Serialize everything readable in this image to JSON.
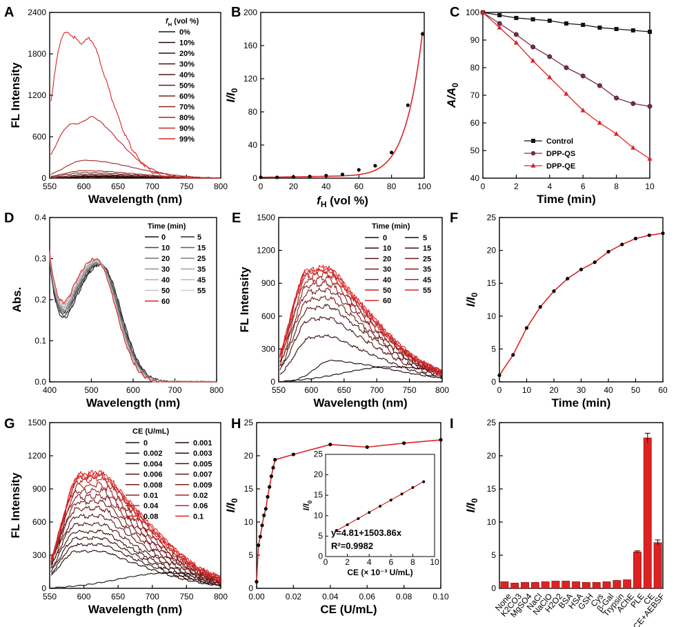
{
  "figure": {
    "panels": [
      {
        "id": "A",
        "label": "A",
        "type": "line",
        "xlabel": "Wavelength (nm)",
        "ylabel": "FL Intensity",
        "xlim": [
          550,
          800
        ],
        "ylim": [
          0,
          2400
        ],
        "xticks": [
          550,
          600,
          650,
          700,
          750,
          800
        ],
        "yticks": [
          0,
          600,
          1200,
          1800,
          2400
        ],
        "legend": {
          "title": "f_H (vol %)",
          "title_main": "f",
          "title_sub": "H",
          "title_rest": " (vol %)",
          "placement": "top-right",
          "columns": 1
        },
        "series": [
          {
            "name": "0%",
            "color": "#111111",
            "peak": 18,
            "center": 610,
            "width": 60
          },
          {
            "name": "10%",
            "color": "#1f0606",
            "peak": 20,
            "center": 610,
            "width": 60
          },
          {
            "name": "20%",
            "color": "#2e0a0a",
            "peak": 24,
            "center": 612,
            "width": 62
          },
          {
            "name": "30%",
            "color": "#3e0f0f",
            "peak": 30,
            "center": 612,
            "width": 62
          },
          {
            "name": "40%",
            "color": "#501515",
            "peak": 40,
            "center": 610,
            "width": 64
          },
          {
            "name": "50%",
            "color": "#621a1a",
            "peak": 55,
            "center": 605,
            "width": 64
          },
          {
            "name": "60%",
            "color": "#752020",
            "peak": 80,
            "center": 600,
            "width": 64
          },
          {
            "name": "70%",
            "color": "#8a2323",
            "peak": 110,
            "center": 600,
            "width": 64
          },
          {
            "name": "80%",
            "color": "#a52525",
            "peak": 260,
            "center": 600,
            "width": 62
          },
          {
            "name": "90%",
            "color": "#c42525",
            "peak": 780,
            "center": 582,
            "width": 52
          },
          {
            "name": "99%",
            "color": "#dd2222",
            "peak": 2110,
            "center": 572,
            "width": 40
          }
        ]
      },
      {
        "id": "B",
        "label": "B",
        "type": "scatter",
        "xlabel": "f_H (vol %)",
        "xlabel_main": "f",
        "xlabel_sub": "H",
        "xlabel_rest": " (vol %)",
        "ylabel": "I/I0",
        "ylabel_main": "I/I",
        "ylabel_sub": "0",
        "xlim": [
          0,
          100
        ],
        "ylim": [
          0,
          200
        ],
        "xticks": [
          0,
          20,
          40,
          60,
          80,
          100
        ],
        "yticks": [
          0,
          40,
          80,
          120,
          160,
          200
        ],
        "x": [
          0,
          10,
          20,
          30,
          40,
          50,
          60,
          70,
          80,
          90,
          99
        ],
        "y": [
          1,
          1,
          1.5,
          2,
          3,
          4.5,
          10,
          15,
          31,
          88,
          174
        ],
        "fit_color": "#dd2222"
      },
      {
        "id": "C",
        "label": "C",
        "type": "line",
        "xlabel": "Time (min)",
        "ylabel": "A/A0",
        "ylabel_main": "A/A",
        "ylabel_sub": "0",
        "xlim": [
          0,
          10
        ],
        "ylim": [
          40,
          100
        ],
        "xticks": [
          0,
          2,
          4,
          6,
          8,
          10
        ],
        "yticks": [
          40,
          50,
          60,
          70,
          80,
          90,
          100
        ],
        "legend": {
          "placement": "bottom-left"
        },
        "x": [
          0,
          1,
          2,
          3,
          4,
          5,
          6,
          7,
          8,
          9,
          10
        ],
        "series": [
          {
            "name": "Control",
            "color": "#111111",
            "marker": "square",
            "values": [
              100,
              99,
              98,
              97.5,
              97,
              96,
              95.5,
              94.5,
              94,
              93.5,
              93
            ]
          },
          {
            "name": "DPP-QS",
            "color": "#7a2a45",
            "marker": "circle",
            "values": [
              100,
              96,
              92,
              87.5,
              84,
              80,
              77,
              73.5,
              69,
              67,
              66
            ]
          },
          {
            "name": "DPP-QE",
            "color": "#dd2222",
            "marker": "triangle",
            "values": [
              100,
              94.5,
              89,
              82.5,
              76.5,
              70.5,
              64.5,
              60,
              56,
              51,
              47
            ]
          }
        ]
      },
      {
        "id": "D",
        "label": "D",
        "type": "line",
        "xlabel": "Wavelength (nm)",
        "ylabel": "Abs.",
        "xlim": [
          400,
          800
        ],
        "ylim": [
          0,
          0.4
        ],
        "xticks": [
          400,
          500,
          600,
          700,
          800
        ],
        "yticks": [
          0.0,
          0.1,
          0.2,
          0.3,
          0.4
        ],
        "legend": {
          "title": "Time (min)",
          "placement": "top-right",
          "columns": 2
        },
        "series": [
          {
            "name": "0",
            "color": "#111111",
            "peak_x": 523,
            "peak_y": 0.287
          },
          {
            "name": "5",
            "color": "#2a2a2a",
            "peak_x": 521,
            "peak_y": 0.288
          },
          {
            "name": "10",
            "color": "#444444",
            "peak_x": 519,
            "peak_y": 0.289
          },
          {
            "name": "15",
            "color": "#5a5a5a",
            "peak_x": 518,
            "peak_y": 0.29
          },
          {
            "name": "20",
            "color": "#6e6e6e",
            "peak_x": 517,
            "peak_y": 0.291
          },
          {
            "name": "25",
            "color": "#808080",
            "peak_x": 516,
            "peak_y": 0.292
          },
          {
            "name": "30",
            "color": "#909090",
            "peak_x": 515,
            "peak_y": 0.293
          },
          {
            "name": "35",
            "color": "#a0a0a0",
            "peak_x": 514,
            "peak_y": 0.294
          },
          {
            "name": "40",
            "color": "#aeaeae",
            "peak_x": 513,
            "peak_y": 0.295
          },
          {
            "name": "45",
            "color": "#b8b8b8",
            "peak_x": 512,
            "peak_y": 0.296
          },
          {
            "name": "50",
            "color": "#c2c2c2",
            "peak_x": 511,
            "peak_y": 0.297
          },
          {
            "name": "55",
            "color": "#cccccc",
            "peak_x": 511,
            "peak_y": 0.298
          },
          {
            "name": "60",
            "color": "#dd2222",
            "peak_x": 510,
            "peak_y": 0.3
          }
        ]
      },
      {
        "id": "E",
        "label": "E",
        "type": "line",
        "xlabel": "Wavelength (nm)",
        "ylabel": "FL Intensity",
        "xlim": [
          550,
          800
        ],
        "ylim": [
          0,
          1500
        ],
        "xticks": [
          550,
          600,
          650,
          700,
          750,
          800
        ],
        "yticks": [
          0,
          300,
          600,
          900,
          1200,
          1500
        ],
        "legend": {
          "title": "Time (min)",
          "placement": "top-right",
          "columns": 2
        },
        "series": [
          {
            "name": "0",
            "color": "#111111",
            "peak": 140,
            "center": 720
          },
          {
            "name": "5",
            "color": "#220707",
            "peak": 185,
            "center": 630
          },
          {
            "name": "10",
            "color": "#330b0b",
            "peak": 410,
            "center": 600
          },
          {
            "name": "15",
            "color": "#441010",
            "peak": 575,
            "center": 598
          },
          {
            "name": "20",
            "color": "#561414",
            "peak": 680,
            "center": 598
          },
          {
            "name": "25",
            "color": "#681818",
            "peak": 760,
            "center": 597
          },
          {
            "name": "30",
            "color": "#7a1b1b",
            "peak": 830,
            "center": 597
          },
          {
            "name": "35",
            "color": "#8d1e1e",
            "peak": 890,
            "center": 596
          },
          {
            "name": "40",
            "color": "#a02121",
            "peak": 940,
            "center": 596
          },
          {
            "name": "45",
            "color": "#b22323",
            "peak": 980,
            "center": 595
          },
          {
            "name": "50",
            "color": "#c42424",
            "peak": 1010,
            "center": 595
          },
          {
            "name": "55",
            "color": "#d42424",
            "peak": 1025,
            "center": 595
          },
          {
            "name": "60",
            "color": "#e02222",
            "peak": 1035,
            "center": 595
          }
        ]
      },
      {
        "id": "F",
        "label": "F",
        "type": "line",
        "xlabel": "Time (min)",
        "ylabel": "I/I0",
        "ylabel_main": "I/I",
        "ylabel_sub": "0",
        "xlim": [
          0,
          60
        ],
        "ylim": [
          0,
          25
        ],
        "xticks": [
          0,
          10,
          20,
          30,
          40,
          50,
          60
        ],
        "yticks": [
          0,
          5,
          10,
          15,
          20,
          25
        ],
        "x": [
          0,
          5,
          10,
          15,
          20,
          25,
          30,
          35,
          40,
          45,
          50,
          55,
          60
        ],
        "y": [
          1,
          4.1,
          8.2,
          11.4,
          13.8,
          15.7,
          17.1,
          18.2,
          19.8,
          20.9,
          21.8,
          22.3,
          22.6
        ],
        "fit_color": "#dd2222"
      },
      {
        "id": "G",
        "label": "G",
        "type": "line",
        "xlabel": "Wavelength (nm)",
        "ylabel": "FL Intensity",
        "xlim": [
          550,
          800
        ],
        "ylim": [
          0,
          1500
        ],
        "xticks": [
          550,
          600,
          650,
          700,
          750,
          800
        ],
        "yticks": [
          0,
          300,
          600,
          900,
          1200,
          1500
        ],
        "legend": {
          "title": "CE (U/mL)",
          "placement": "top-right",
          "columns": 2
        },
        "series": [
          {
            "name": "0",
            "color": "#111111",
            "peak": 140,
            "center": 720
          },
          {
            "name": "0.001",
            "color": "#1d0606",
            "peak": 340,
            "center": 590
          },
          {
            "name": "0.002",
            "color": "#280909",
            "peak": 400,
            "center": 590
          },
          {
            "name": "0.003",
            "color": "#330b0b",
            "peak": 460,
            "center": 590
          },
          {
            "name": "0.004",
            "color": "#3e0e0e",
            "peak": 520,
            "center": 590
          },
          {
            "name": "0.005",
            "color": "#4a1111",
            "peak": 590,
            "center": 590
          },
          {
            "name": "0.006",
            "color": "#561414",
            "peak": 660,
            "center": 591
          },
          {
            "name": "0.007",
            "color": "#621717",
            "peak": 730,
            "center": 591
          },
          {
            "name": "0.008",
            "color": "#6f1919",
            "peak": 790,
            "center": 592
          },
          {
            "name": "0.009",
            "color": "#7c1c1c",
            "peak": 840,
            "center": 592
          },
          {
            "name": "0.01",
            "color": "#8a1e1e",
            "peak": 890,
            "center": 593
          },
          {
            "name": "0.02",
            "color": "#a02121",
            "peak": 940,
            "center": 593
          },
          {
            "name": "0.04",
            "color": "#b52323",
            "peak": 990,
            "center": 594
          },
          {
            "name": "0.06",
            "color": "#c72424",
            "peak": 1015,
            "center": 594
          },
          {
            "name": "0.08",
            "color": "#d52424",
            "peak": 1030,
            "center": 595
          },
          {
            "name": "0.1",
            "color": "#e02222",
            "peak": 1040,
            "center": 595
          }
        ]
      },
      {
        "id": "H",
        "label": "H",
        "type": "scatter",
        "xlabel": "CE (U/mL)",
        "ylabel": "I/I0",
        "ylabel_main": "I/I",
        "ylabel_sub": "0",
        "xlim": [
          0,
          0.1
        ],
        "ylim": [
          0,
          25
        ],
        "xticks": [
          0.0,
          0.02,
          0.04,
          0.06,
          0.08,
          0.1
        ],
        "yticks": [
          0,
          5,
          10,
          15,
          20,
          25
        ],
        "x": [
          0,
          0.001,
          0.002,
          0.003,
          0.004,
          0.005,
          0.006,
          0.007,
          0.008,
          0.009,
          0.01,
          0.02,
          0.04,
          0.06,
          0.08,
          0.1
        ],
        "y": [
          1,
          6.5,
          7.8,
          9.5,
          11,
          12,
          13.8,
          15.3,
          16.9,
          18.2,
          19.4,
          20.2,
          21.7,
          21.3,
          21.9,
          22.4
        ],
        "fit_color": "#dd2222",
        "inset": {
          "xlabel": "CE (× 10⁻³ U/mL)",
          "ylabel": "I/I0",
          "ylabel_main": "I/I",
          "ylabel_sub": "0",
          "xlim": [
            0,
            10
          ],
          "ylim": [
            0,
            25
          ],
          "xticks": [
            0,
            2,
            4,
            6,
            8,
            10
          ],
          "yticks": [
            0,
            5,
            10,
            15,
            20,
            25
          ],
          "x": [
            1,
            2,
            3,
            4,
            5,
            6,
            7,
            8,
            9
          ],
          "y": [
            6.4,
            7.8,
            9.3,
            10.8,
            12.3,
            13.8,
            15.3,
            16.9,
            18.3
          ],
          "equation": "y=4.81+1503.86x",
          "r2": "R²=0.9982",
          "fit_color": "#dd2222"
        }
      },
      {
        "id": "I",
        "label": "I",
        "type": "bar",
        "ylabel": "I/I0",
        "ylabel_main": "I/I",
        "ylabel_sub": "0",
        "ylim": [
          0,
          25
        ],
        "yticks": [
          0,
          5,
          10,
          15,
          20,
          25
        ],
        "categories": [
          "None",
          "K2CO3",
          "MgSO4",
          "NaCl",
          "NaClO",
          "H2O2",
          "BSA",
          "HSA",
          "GSH",
          "Cys",
          "β-Gal",
          "Trypsin",
          "AChE",
          "PLE",
          "CE",
          "CE+AEBSF"
        ],
        "values": [
          1.0,
          0.8,
          0.9,
          0.9,
          1.0,
          1.1,
          1.1,
          1.0,
          0.9,
          0.9,
          1.0,
          1.2,
          1.3,
          5.5,
          22.7,
          6.9
        ],
        "errors": [
          0,
          0,
          0,
          0,
          0,
          0,
          0,
          0,
          0,
          0,
          0,
          0,
          0,
          0.15,
          0.7,
          0.4
        ],
        "bar_color": "#dd2222"
      }
    ]
  }
}
